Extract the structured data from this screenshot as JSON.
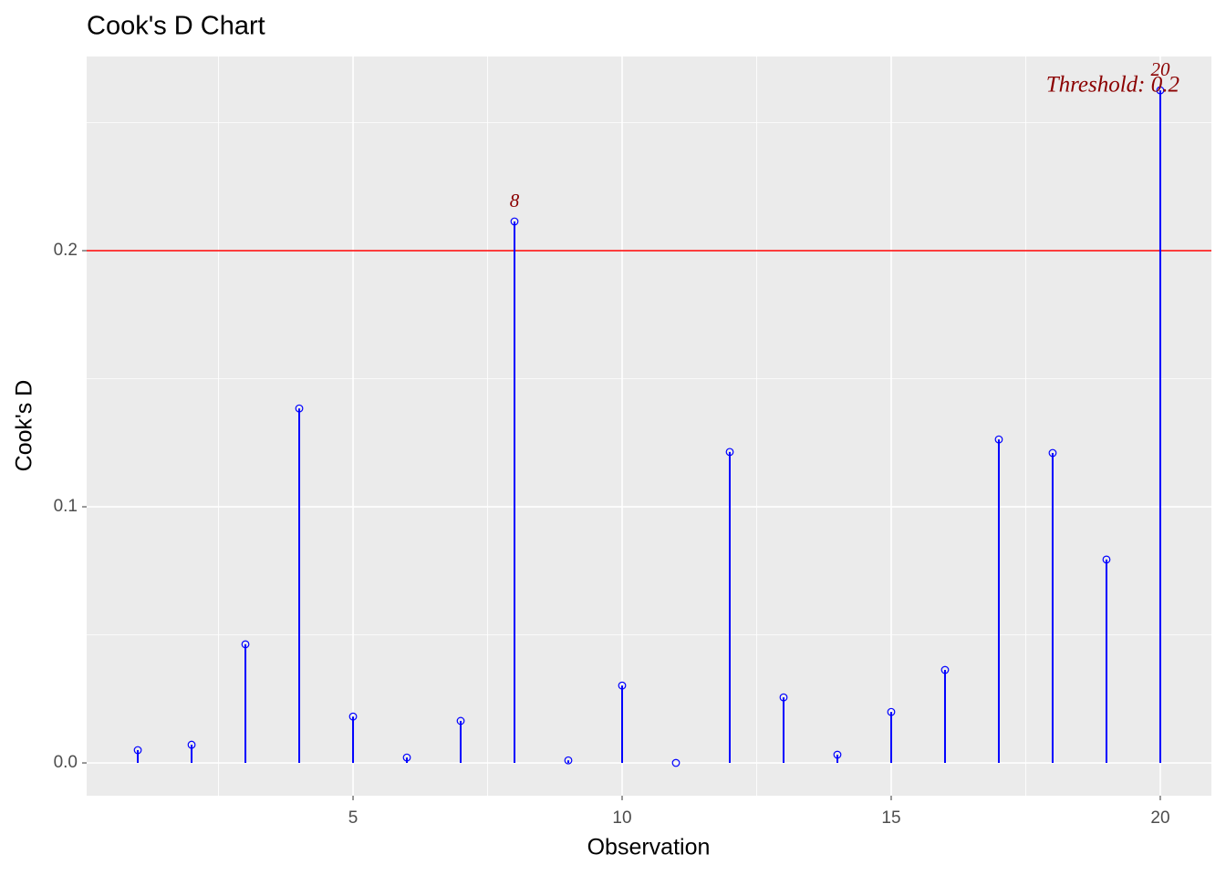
{
  "chart_data": {
    "type": "lollipop",
    "title": "Cook's D Chart",
    "x_label": "Observation",
    "y_label": "Cook's D",
    "x": [
      1,
      2,
      3,
      4,
      5,
      6,
      7,
      8,
      9,
      10,
      11,
      12,
      13,
      14,
      15,
      16,
      17,
      18,
      19,
      20
    ],
    "values": [
      0.005,
      0.0071,
      0.0463,
      0.1384,
      0.0181,
      0.0021,
      0.0164,
      0.2114,
      0.001,
      0.0302,
      0.0,
      0.1214,
      0.0256,
      0.0032,
      0.0199,
      0.0363,
      0.1263,
      0.121,
      0.0794,
      0.2626
    ],
    "point_labels": [
      null,
      null,
      null,
      null,
      null,
      null,
      null,
      "8",
      null,
      null,
      null,
      null,
      null,
      null,
      null,
      null,
      null,
      null,
      null,
      "20"
    ],
    "color": "#0000ff",
    "threshold": 0.2,
    "threshold_color": "#ff0000",
    "threshold_label": "Threshold: 0.2",
    "label_color": "#8b0000",
    "xlim": [
      0.05,
      20.95
    ],
    "xticks": [
      5,
      10,
      15,
      20
    ],
    "x_minor_grid": [
      2.5,
      7.5,
      12.5,
      17.5
    ],
    "ylim": [
      -0.0128,
      0.2758
    ],
    "yticks": [
      {
        "value": 0,
        "label": "0.0"
      },
      0.1,
      0.2
    ],
    "y_minor_grid": [
      0.05,
      0.15,
      0.25
    ],
    "grid": true
  }
}
